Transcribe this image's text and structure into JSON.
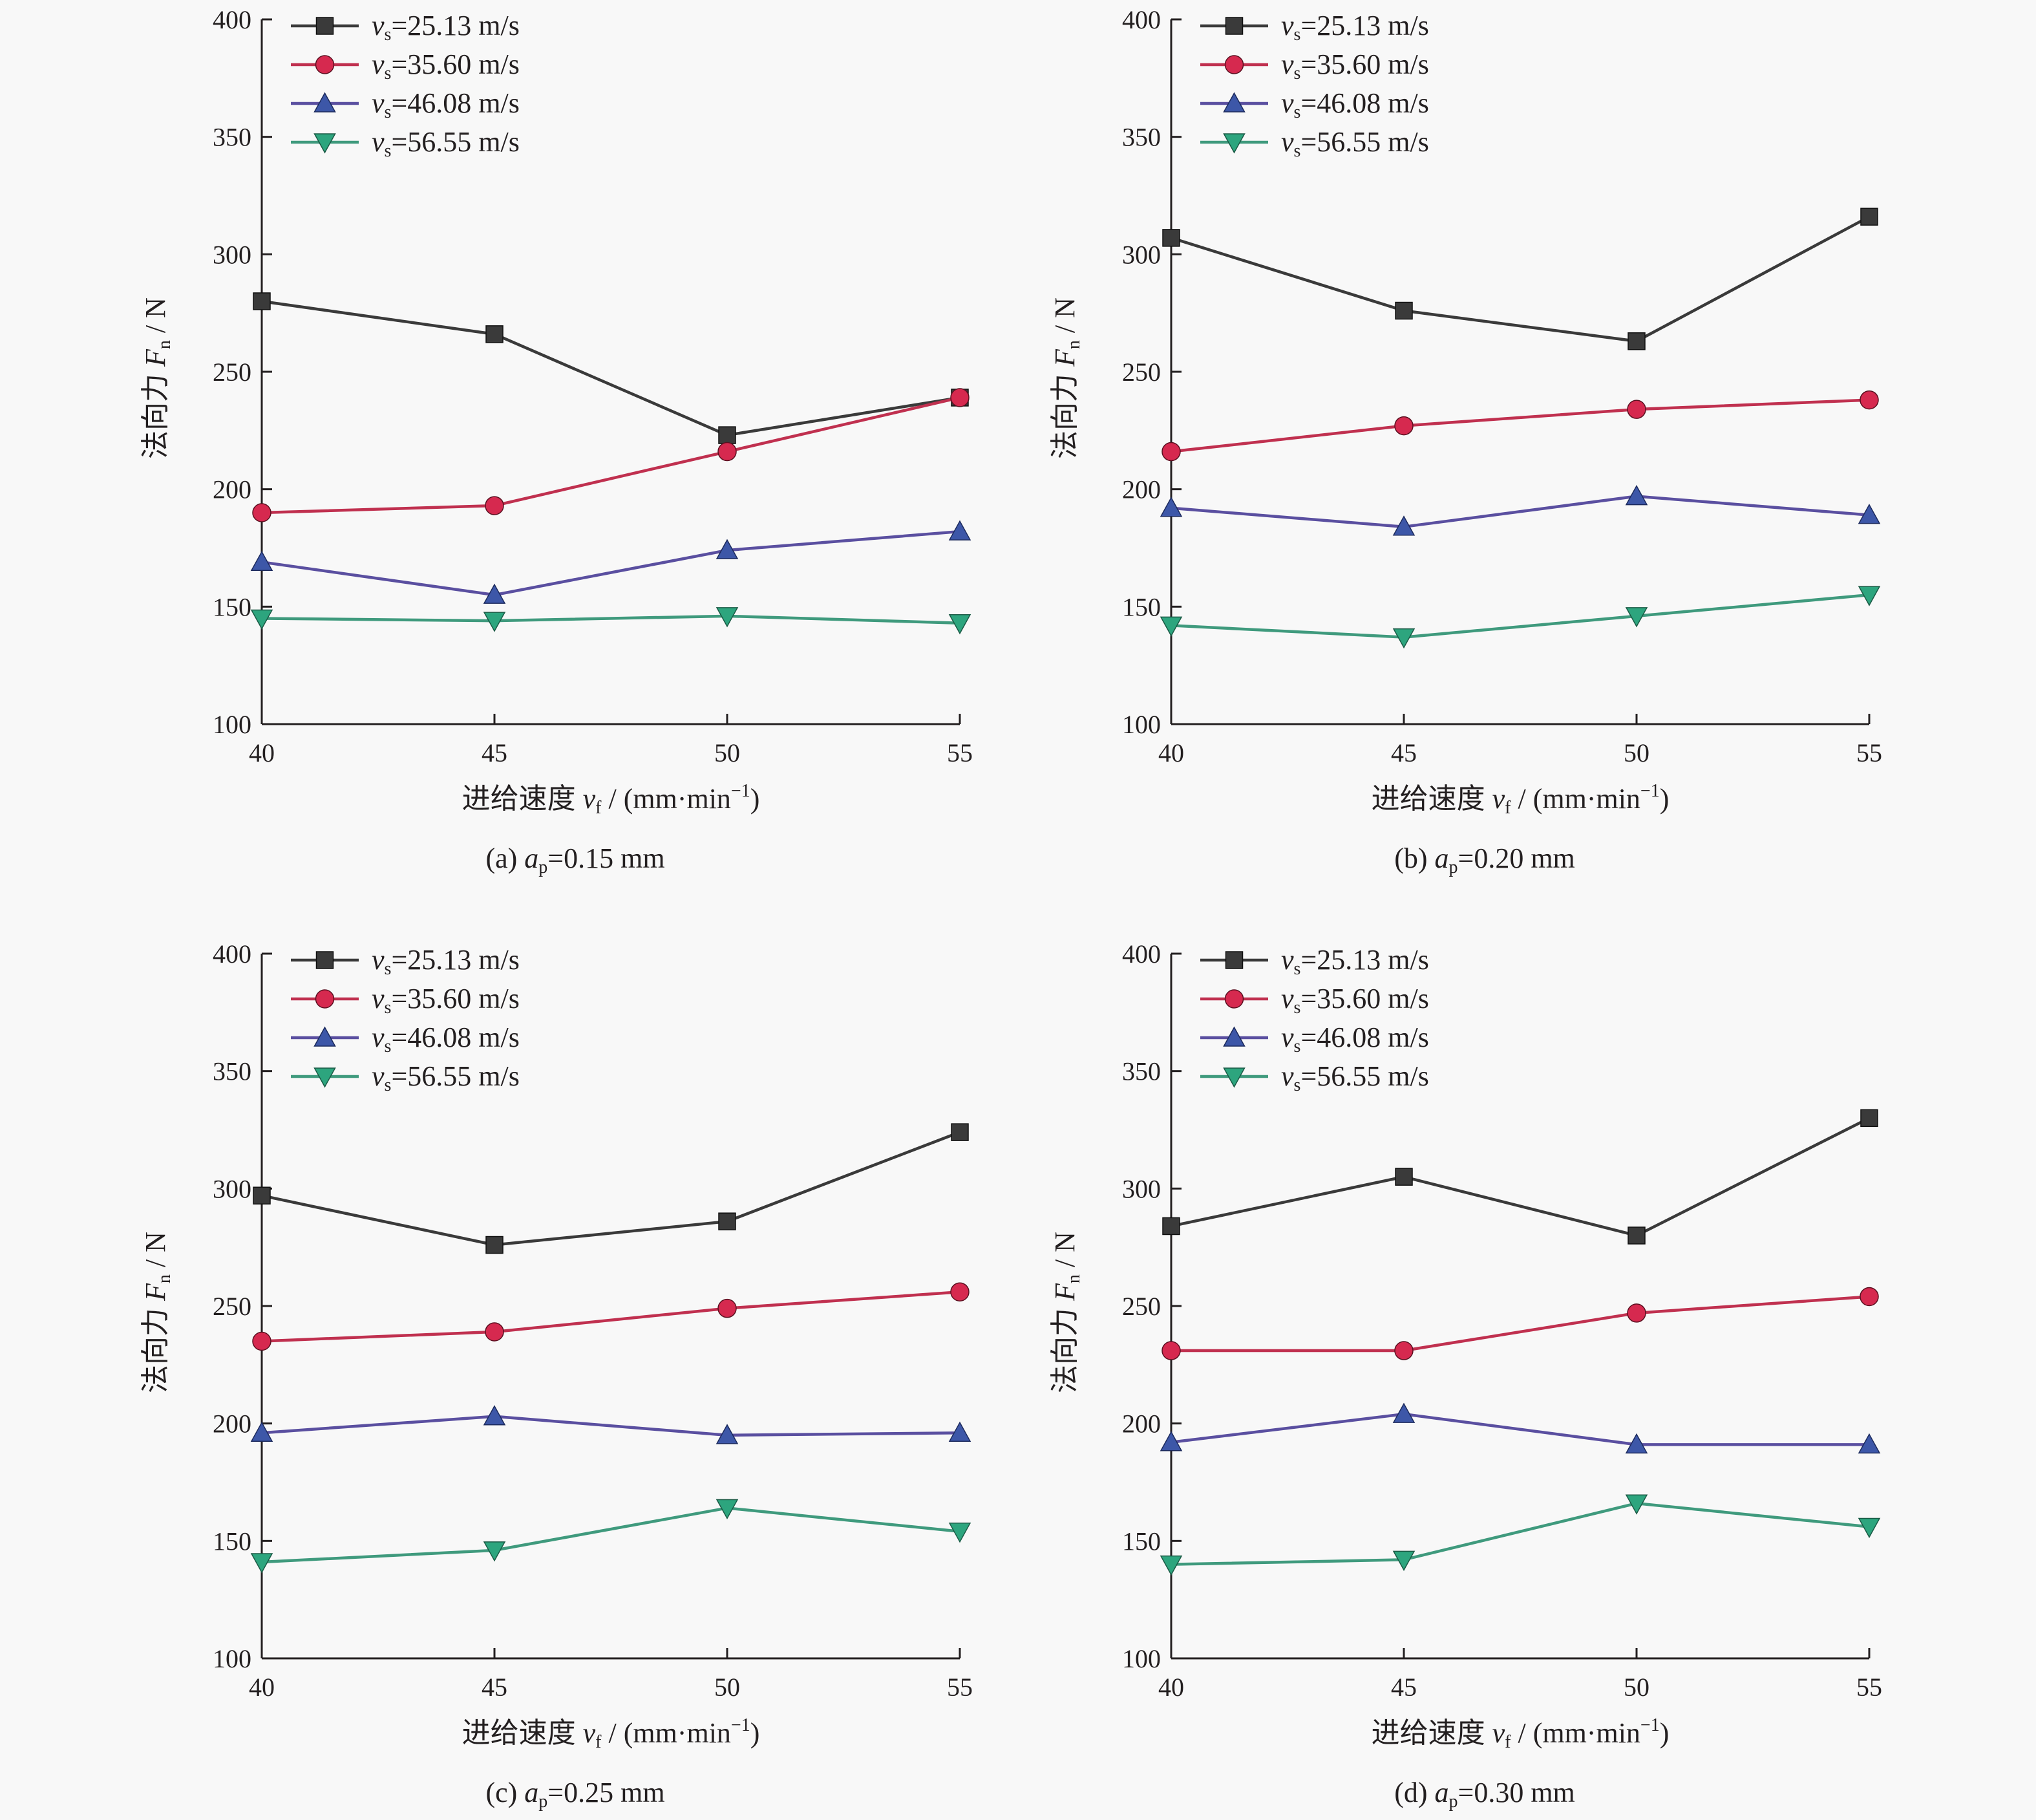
{
  "figure": {
    "yticks": [
      100,
      150,
      200,
      250,
      300,
      350,
      400
    ],
    "xticks": [
      40,
      45,
      50,
      55
    ],
    "ylabel": {
      "text": "法向力 ",
      "var": "F",
      "sub": "n",
      "unit": " / N"
    },
    "xlabel": {
      "text": "进给速度 ",
      "var": "v",
      "sub": "f",
      "unit": " / (mm·min",
      "sup": "−1",
      "close": ")"
    }
  },
  "colors": {
    "axis": "#231f20",
    "series": [
      "#3a3a3a",
      "#d6294f",
      "#3d57a8",
      "#2da57e"
    ],
    "line": [
      "#3a3a3a",
      "#c0304f",
      "#5a4fa0",
      "#3f9a7d"
    ]
  },
  "chart_data": [
    {
      "type": "line",
      "caption": {
        "prefix": "(a) ",
        "var": "a",
        "sub": "p",
        "value": "=0.15 mm"
      },
      "x": [
        40,
        45,
        50,
        55
      ],
      "ylim": [
        100,
        400
      ],
      "series": [
        {
          "name": "vs=25.13 m/s",
          "label_var": "v",
          "label_sub": "s",
          "label_value": "=25.13 m/s",
          "marker": "square",
          "values": [
            280,
            266,
            223,
            239
          ]
        },
        {
          "name": "vs=35.60 m/s",
          "label_var": "v",
          "label_sub": "s",
          "label_value": "=35.60 m/s",
          "marker": "circle",
          "values": [
            190,
            193,
            216,
            239
          ]
        },
        {
          "name": "vs=46.08 m/s",
          "label_var": "v",
          "label_sub": "s",
          "label_value": "=46.08 m/s",
          "marker": "triangle-up",
          "values": [
            169,
            155,
            174,
            182
          ]
        },
        {
          "name": "vs=56.55 m/s",
          "label_var": "v",
          "label_sub": "s",
          "label_value": "=56.55 m/s",
          "marker": "triangle-down",
          "values": [
            145,
            144,
            146,
            143
          ]
        }
      ]
    },
    {
      "type": "line",
      "caption": {
        "prefix": "(b) ",
        "var": "a",
        "sub": "p",
        "value": "=0.20 mm"
      },
      "x": [
        40,
        45,
        50,
        55
      ],
      "ylim": [
        100,
        400
      ],
      "series": [
        {
          "name": "vs=25.13 m/s",
          "label_var": "v",
          "label_sub": "s",
          "label_value": "=25.13 m/s",
          "marker": "square",
          "values": [
            307,
            276,
            263,
            316
          ]
        },
        {
          "name": "vs=35.60 m/s",
          "label_var": "v",
          "label_sub": "s",
          "label_value": "=35.60 m/s",
          "marker": "circle",
          "values": [
            216,
            227,
            234,
            238
          ]
        },
        {
          "name": "vs=46.08 m/s",
          "label_var": "v",
          "label_sub": "s",
          "label_value": "=46.08 m/s",
          "marker": "triangle-up",
          "values": [
            192,
            184,
            197,
            189
          ]
        },
        {
          "name": "vs=56.55 m/s",
          "label_var": "v",
          "label_sub": "s",
          "label_value": "=56.55 m/s",
          "marker": "triangle-down",
          "values": [
            142,
            137,
            146,
            155
          ]
        }
      ]
    },
    {
      "type": "line",
      "caption": {
        "prefix": "(c) ",
        "var": "a",
        "sub": "p",
        "value": "=0.25 mm"
      },
      "x": [
        40,
        45,
        50,
        55
      ],
      "ylim": [
        100,
        400
      ],
      "series": [
        {
          "name": "vs=25.13 m/s",
          "label_var": "v",
          "label_sub": "s",
          "label_value": "=25.13 m/s",
          "marker": "square",
          "values": [
            297,
            276,
            286,
            324
          ]
        },
        {
          "name": "vs=35.60 m/s",
          "label_var": "v",
          "label_sub": "s",
          "label_value": "=35.60 m/s",
          "marker": "circle",
          "values": [
            235,
            239,
            249,
            256
          ]
        },
        {
          "name": "vs=46.08 m/s",
          "label_var": "v",
          "label_sub": "s",
          "label_value": "=46.08 m/s",
          "marker": "triangle-up",
          "values": [
            196,
            203,
            195,
            196
          ]
        },
        {
          "name": "vs=56.55 m/s",
          "label_var": "v",
          "label_sub": "s",
          "label_value": "=56.55 m/s",
          "marker": "triangle-down",
          "values": [
            141,
            146,
            164,
            154
          ]
        }
      ]
    },
    {
      "type": "line",
      "caption": {
        "prefix": "(d) ",
        "var": "a",
        "sub": "p",
        "value": "=0.30 mm"
      },
      "x": [
        40,
        45,
        50,
        55
      ],
      "ylim": [
        100,
        400
      ],
      "series": [
        {
          "name": "vs=25.13 m/s",
          "label_var": "v",
          "label_sub": "s",
          "label_value": "=25.13 m/s",
          "marker": "square",
          "values": [
            284,
            305,
            280,
            330
          ]
        },
        {
          "name": "vs=35.60 m/s",
          "label_var": "v",
          "label_sub": "s",
          "label_value": "=35.60 m/s",
          "marker": "circle",
          "values": [
            231,
            231,
            247,
            254
          ]
        },
        {
          "name": "vs=46.08 m/s",
          "label_var": "v",
          "label_sub": "s",
          "label_value": "=46.08 m/s",
          "marker": "triangle-up",
          "values": [
            192,
            204,
            191,
            191
          ]
        },
        {
          "name": "vs=56.55 m/s",
          "label_var": "v",
          "label_sub": "s",
          "label_value": "=56.55 m/s",
          "marker": "triangle-down",
          "values": [
            140,
            142,
            166,
            156
          ]
        }
      ]
    }
  ]
}
